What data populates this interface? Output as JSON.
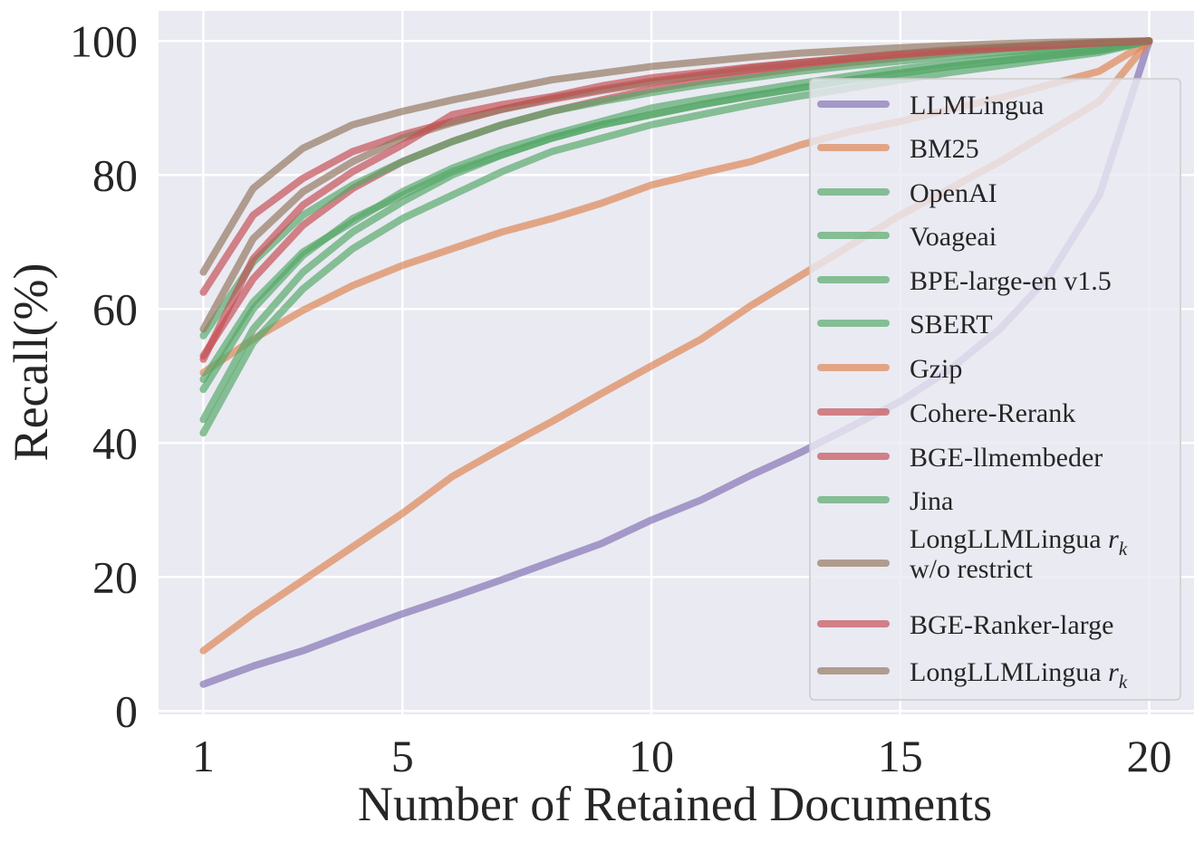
{
  "chart_data": {
    "type": "line",
    "title": "",
    "xlabel": "Number of Retained Documents",
    "ylabel": "Recall(%)",
    "xlim": [
      0.1,
      20.9
    ],
    "ylim": [
      -0.5,
      104.5
    ],
    "xticks": [
      1,
      5,
      10,
      15,
      20
    ],
    "xtick_labels": [
      "1",
      "5",
      "10",
      "15",
      "20"
    ],
    "yticks": [
      0,
      20,
      40,
      60,
      80,
      100
    ],
    "ytick_labels": [
      "0",
      "20",
      "40",
      "60",
      "80",
      "100"
    ],
    "grid": true,
    "legend_position": "right",
    "x": [
      1,
      2,
      3,
      4,
      5,
      6,
      7,
      8,
      9,
      10,
      11,
      12,
      13,
      14,
      15,
      16,
      17,
      18,
      19,
      20
    ],
    "series": [
      {
        "name": "LLMLingua",
        "legend_label": "LLMLingua",
        "color": "#8172b3",
        "values": [
          4,
          6.7,
          9,
          11.8,
          14.5,
          17,
          19.6,
          22.3,
          25,
          28.5,
          31.5,
          35.2,
          38.6,
          42.4,
          46.2,
          51,
          57,
          65,
          77,
          100
        ]
      },
      {
        "name": "BM25",
        "legend_label": "BM25",
        "color": "#dd8452",
        "values": [
          50.5,
          55.5,
          59.8,
          63.5,
          66.5,
          69,
          71.5,
          73.5,
          75.8,
          78.5,
          80.3,
          82,
          84.5,
          86.5,
          88,
          89.8,
          91.5,
          93.5,
          95.5,
          100
        ]
      },
      {
        "name": "OpenAI",
        "legend_label": "OpenAI",
        "color": "#55a868",
        "values": [
          48,
          60,
          68,
          73.5,
          77,
          80.5,
          83,
          85.5,
          87.5,
          89,
          90.5,
          91.8,
          93,
          94.2,
          95.2,
          96.2,
          97,
          97.8,
          98.6,
          100
        ]
      },
      {
        "name": "Voageai",
        "legend_label": "Voageai",
        "color": "#55a868",
        "values": [
          41.5,
          55,
          63,
          69,
          73.5,
          77,
          80.5,
          83.5,
          85.5,
          87.5,
          89,
          90.5,
          91.8,
          93,
          94.2,
          95.3,
          96.3,
          97.3,
          98.3,
          100
        ]
      },
      {
        "name": "BPE-large-en v1.5",
        "legend_label": "BPE-large-en v1.5",
        "color": "#55a868",
        "values": [
          49.5,
          61,
          68.5,
          73,
          77.5,
          81,
          83.8,
          86,
          88,
          90,
          91.3,
          92.5,
          93.7,
          94.8,
          95.8,
          96.7,
          97.5,
          98.3,
          99,
          100
        ]
      },
      {
        "name": "SBERT",
        "legend_label": "SBERT",
        "color": "#55a868",
        "values": [
          43.5,
          57,
          65.5,
          71.5,
          76,
          80,
          83,
          85.5,
          87.5,
          89,
          90.5,
          91.8,
          93,
          94.2,
          95.2,
          96.2,
          97,
          97.8,
          98.6,
          100
        ]
      },
      {
        "name": "Gzip",
        "legend_label": "Gzip",
        "color": "#dd8452",
        "values": [
          9,
          14.5,
          19.5,
          24.5,
          29.5,
          35,
          39.2,
          43.2,
          47.4,
          51.5,
          55.5,
          60.5,
          65,
          69.5,
          74,
          78,
          82,
          86.5,
          91,
          100
        ]
      },
      {
        "name": "Cohere-Rerank",
        "legend_label": "Cohere-Rerank",
        "color": "#c44e52",
        "values": [
          62.5,
          74,
          79.5,
          83.5,
          86,
          88,
          89.8,
          91.3,
          92.6,
          93.8,
          94.8,
          95.7,
          96.5,
          97.3,
          98,
          98.5,
          99,
          99.4,
          99.7,
          100
        ]
      },
      {
        "name": "BGE-llmembeder",
        "legend_label": "BGE-llmembeder",
        "color": "#c44e52",
        "values": [
          53,
          64.5,
          72.5,
          78,
          82,
          85,
          87.5,
          89.5,
          91.2,
          92.8,
          94,
          95,
          96,
          96.8,
          97.5,
          98.2,
          98.8,
          99.3,
          99.7,
          100
        ]
      },
      {
        "name": "Jina",
        "legend_label": "Jina",
        "color": "#55a868",
        "values": [
          56,
          67,
          74,
          78.5,
          82,
          85,
          87.5,
          89.5,
          91,
          92.3,
          93.5,
          94.5,
          95.5,
          96.3,
          97,
          97.7,
          98.3,
          98.8,
          99.3,
          100
        ]
      },
      {
        "name": "LongLLMLingua rk w/o restrict",
        "legend_label": "LongLLMLingua ",
        "legend_label_italic": "r",
        "legend_label_sub": "k",
        "legend_label_line2": "w/o restrict",
        "color": "#937860",
        "values": [
          57,
          70.5,
          77.5,
          82,
          85.5,
          87.8,
          89.8,
          91.5,
          92.8,
          94,
          95,
          96,
          96.8,
          97.5,
          98.1,
          98.7,
          99.1,
          99.5,
          99.8,
          100
        ]
      },
      {
        "name": "BGE-Ranker-large",
        "legend_label": "BGE-Ranker-large",
        "color": "#c44e52",
        "values": [
          52.5,
          67.5,
          75.5,
          80.5,
          84.5,
          89,
          90.5,
          91.7,
          93.3,
          94.5,
          95.3,
          96.1,
          96.8,
          97.4,
          98,
          98.5,
          98.9,
          99.3,
          99.7,
          100
        ]
      },
      {
        "name": "LongLLMLingua rk",
        "legend_label": "LongLLMLingua ",
        "legend_label_italic": "r",
        "legend_label_sub": "k",
        "color": "#937860",
        "values": [
          65.5,
          78,
          84,
          87.5,
          89.5,
          91.2,
          92.7,
          94.2,
          95.2,
          96.2,
          96.9,
          97.6,
          98.2,
          98.6,
          99,
          99.3,
          99.6,
          99.8,
          99.9,
          100
        ]
      }
    ]
  }
}
